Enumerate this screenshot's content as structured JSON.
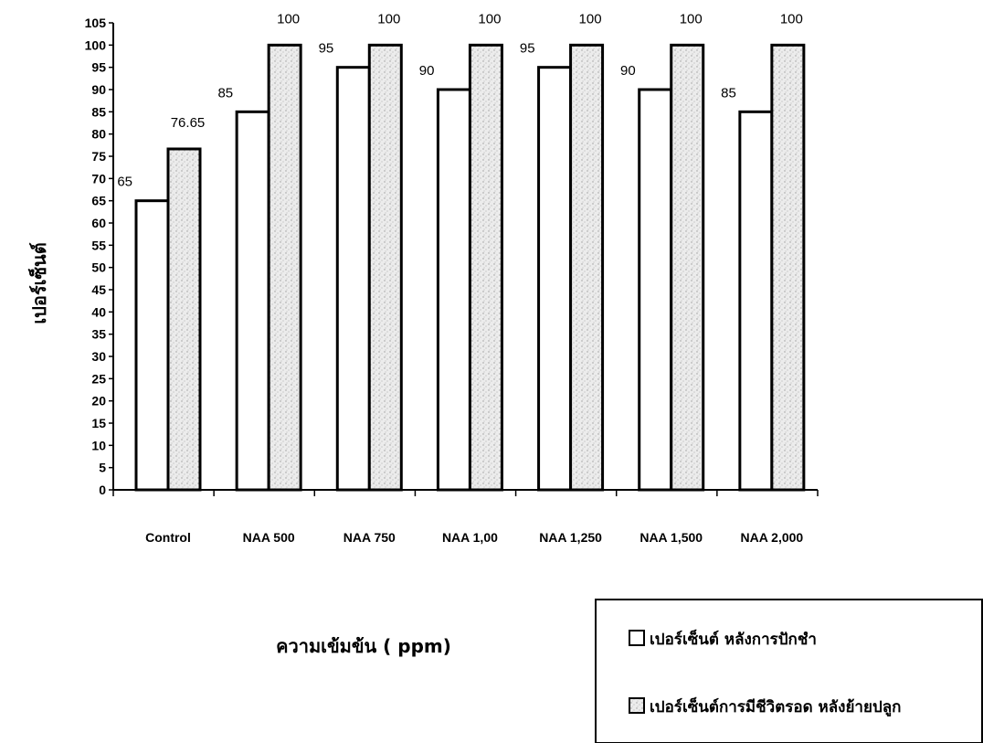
{
  "chart_data": {
    "type": "bar",
    "title": "",
    "xlabel": "ความเข้มข้น ( ppm)",
    "ylabel": "เปอร์เซ็นต์",
    "ylim": [
      0,
      105
    ],
    "yticks": [
      0,
      5,
      10,
      15,
      20,
      25,
      30,
      35,
      40,
      45,
      50,
      55,
      60,
      65,
      70,
      75,
      80,
      85,
      90,
      95,
      100,
      105
    ],
    "grid": false,
    "legend_position": "bottom-right",
    "categories": [
      "Control",
      "NAA 500",
      "NAA 750",
      "NAA 1,00",
      "NAA 1,250",
      "NAA 1,500",
      "NAA 2,000"
    ],
    "series": [
      {
        "name": "เปอร์เซ็นต์ หลังการปักชำ",
        "values": [
          65,
          85,
          95,
          90,
          95,
          90,
          85
        ],
        "labels": [
          "65",
          "85",
          "95",
          "90",
          "95",
          "90",
          "85"
        ],
        "fill": "#ffffff"
      },
      {
        "name": "เปอร์เซ็นต์การมีชีวิตรอด หลังย้ายปลูก",
        "values": [
          76.65,
          100,
          100,
          100,
          100,
          100,
          100
        ],
        "labels": [
          "76.65",
          "100",
          "100",
          "100",
          "100",
          "100",
          "100"
        ],
        "fill": "#e6e6e6"
      }
    ]
  }
}
